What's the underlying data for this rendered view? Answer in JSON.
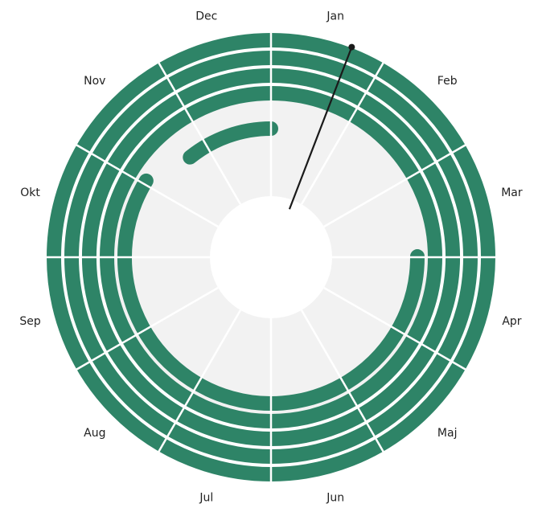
{
  "chart_data": {
    "type": "radial-timeline",
    "months": [
      "Jan",
      "Feb",
      "Mar",
      "Apr",
      "Maj",
      "Jun",
      "Jul",
      "Aug",
      "Sep",
      "Okt",
      "Nov",
      "Dec"
    ],
    "rings": [
      {
        "start_month": 0,
        "end_month": 12
      },
      {
        "start_month": 0,
        "end_month": 12
      },
      {
        "start_month": 0,
        "end_month": 12
      },
      {
        "start_month": 0,
        "end_month": 12
      },
      {
        "start_month": 2.99,
        "end_month": 10.05
      },
      {
        "start_month": 10.7,
        "end_month": 12.0
      }
    ],
    "marker_month": 0.7
  },
  "colors": {
    "ring": "#2e8467",
    "wedge": "#f2f2f2",
    "divider": "#ffffff",
    "marker": "#1a1a1a",
    "label": "#222222"
  }
}
